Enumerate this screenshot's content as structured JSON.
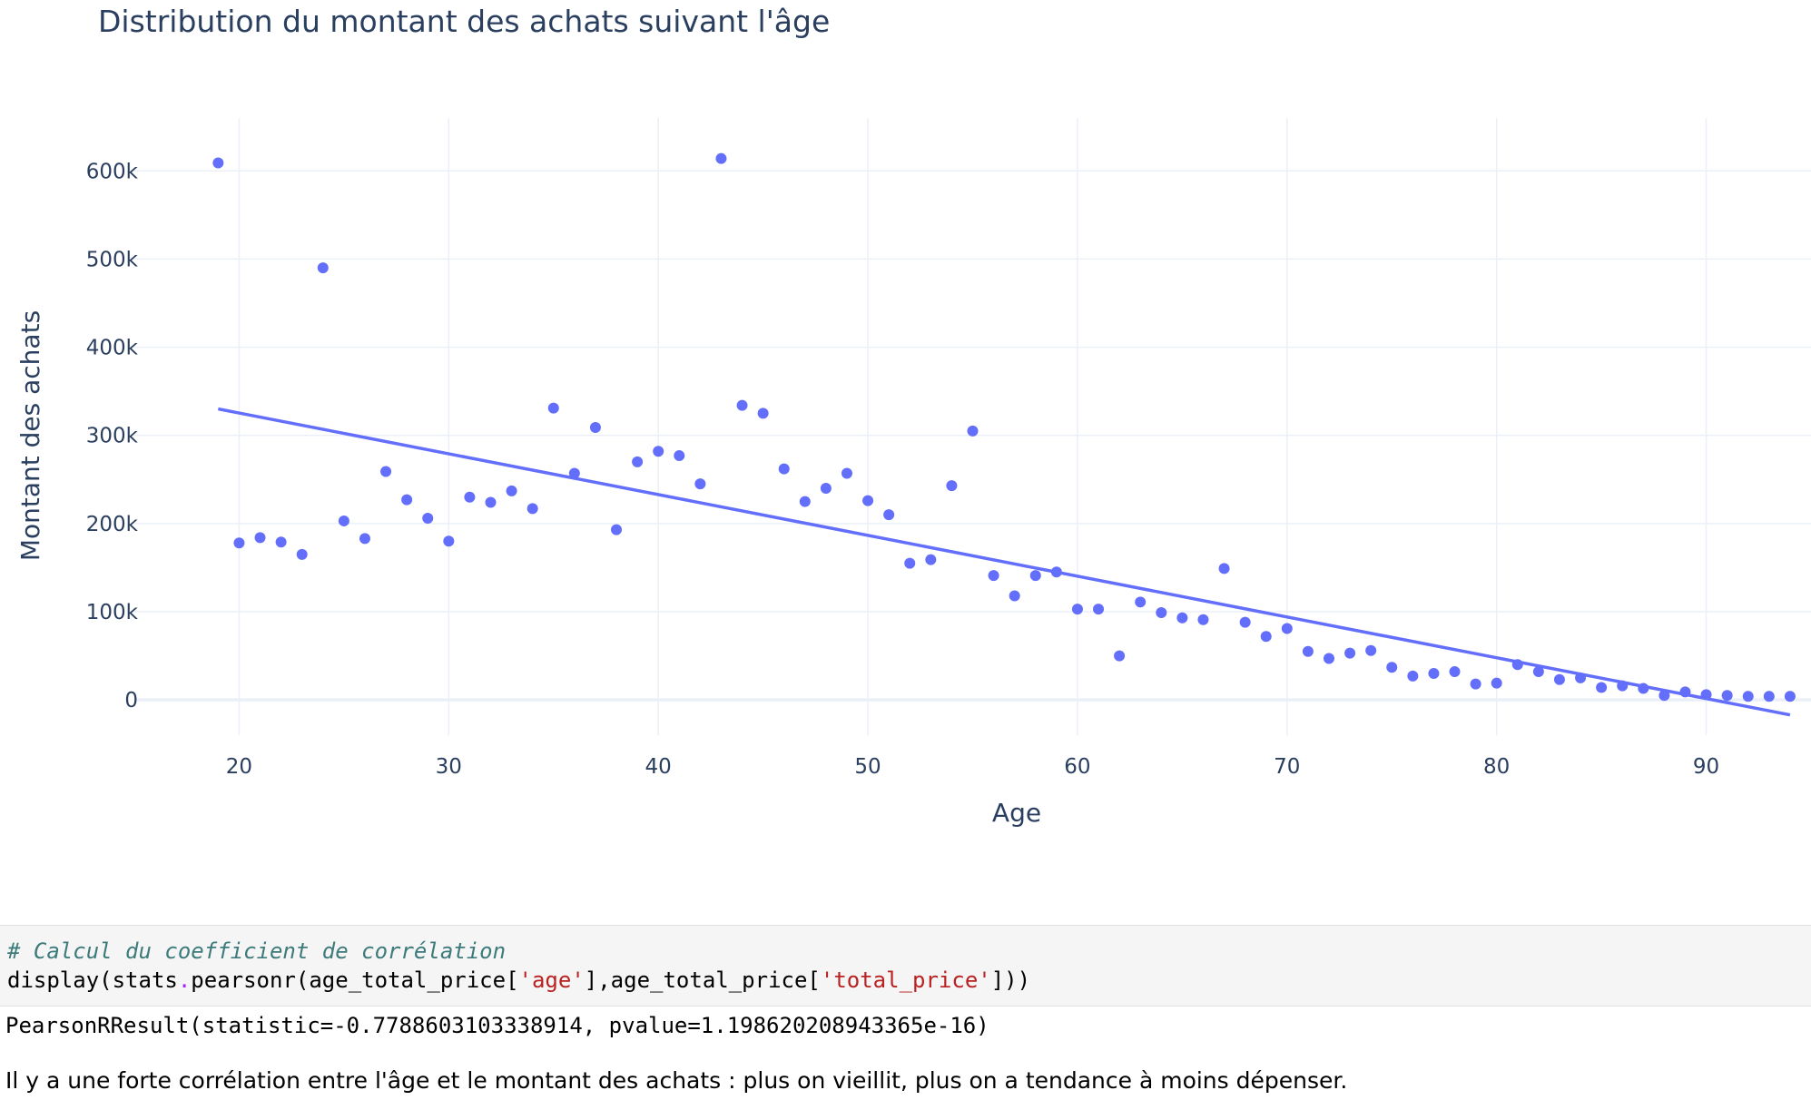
{
  "chart_data": {
    "type": "scatter",
    "title": "Distribution du montant des achats suivant l'âge",
    "xlabel": "Age",
    "ylabel": "Montant des achats",
    "xlim": [
      15,
      95
    ],
    "ylim": [
      -40000,
      660000
    ],
    "x_ticks": [
      20,
      30,
      40,
      50,
      60,
      70,
      80,
      90
    ],
    "y_ticks": [
      0,
      100000,
      200000,
      300000,
      400000,
      500000,
      600000
    ],
    "y_tick_labels": [
      "0",
      "100k",
      "200k",
      "300k",
      "400k",
      "500k",
      "600k"
    ],
    "grid": true,
    "marker_color": "#636efa",
    "trendline_color": "#636efa",
    "series": [
      {
        "x": [
          19,
          20,
          21,
          22,
          23,
          24,
          25,
          26,
          27,
          28,
          29,
          30,
          31,
          32,
          33,
          34,
          35,
          36,
          37,
          38,
          39,
          40,
          41,
          42,
          43,
          44,
          45,
          46,
          47,
          48,
          49,
          50,
          51,
          52,
          53,
          54,
          55,
          56,
          57,
          58,
          59,
          60,
          61,
          62,
          63,
          64,
          65,
          66,
          67,
          68,
          69,
          70,
          71,
          72,
          73,
          74,
          75,
          76,
          77,
          78,
          79,
          80,
          81,
          82,
          83,
          84,
          85,
          86,
          87,
          88,
          89,
          90,
          91,
          92,
          93,
          94
        ],
        "y": [
          609000,
          178000,
          184000,
          179000,
          165000,
          490000,
          203000,
          183000,
          259000,
          227000,
          206000,
          180000,
          230000,
          224000,
          237000,
          217000,
          331000,
          257000,
          309000,
          193000,
          270000,
          282000,
          277000,
          245000,
          614000,
          334000,
          325000,
          262000,
          225000,
          240000,
          257000,
          226000,
          210000,
          155000,
          159000,
          243000,
          305000,
          141000,
          118000,
          141000,
          145000,
          103000,
          103000,
          50000,
          111000,
          99000,
          93000,
          91000,
          149000,
          88000,
          72000,
          81000,
          55000,
          47000,
          53000,
          56000,
          37000,
          27000,
          30000,
          32000,
          18000,
          19000,
          40000,
          32000,
          23000,
          25000,
          14000,
          16000,
          13000,
          5000,
          9000,
          6000,
          5000,
          4000,
          4000,
          4000
        ]
      }
    ],
    "trendline": {
      "x": [
        19,
        94
      ],
      "y": [
        330000,
        -17000
      ]
    }
  },
  "code": {
    "comment": "# Calcul du coefficient de corrélation",
    "line_part1": "display(stats",
    "line_dot": ".",
    "line_part2": "pearsonr(age_total_price[",
    "line_str1": "'age'",
    "line_part3": "],age_total_price[",
    "line_str2": "'total_price'",
    "line_part4": "]))"
  },
  "output": "PearsonRResult(statistic=-0.7788603103338914, pvalue=1.198620208943365e-16)",
  "conclusion": "Il y a une forte corrélation entre l'âge et le montant des achats : plus on vieillit, plus on a tendance à moins dépenser."
}
